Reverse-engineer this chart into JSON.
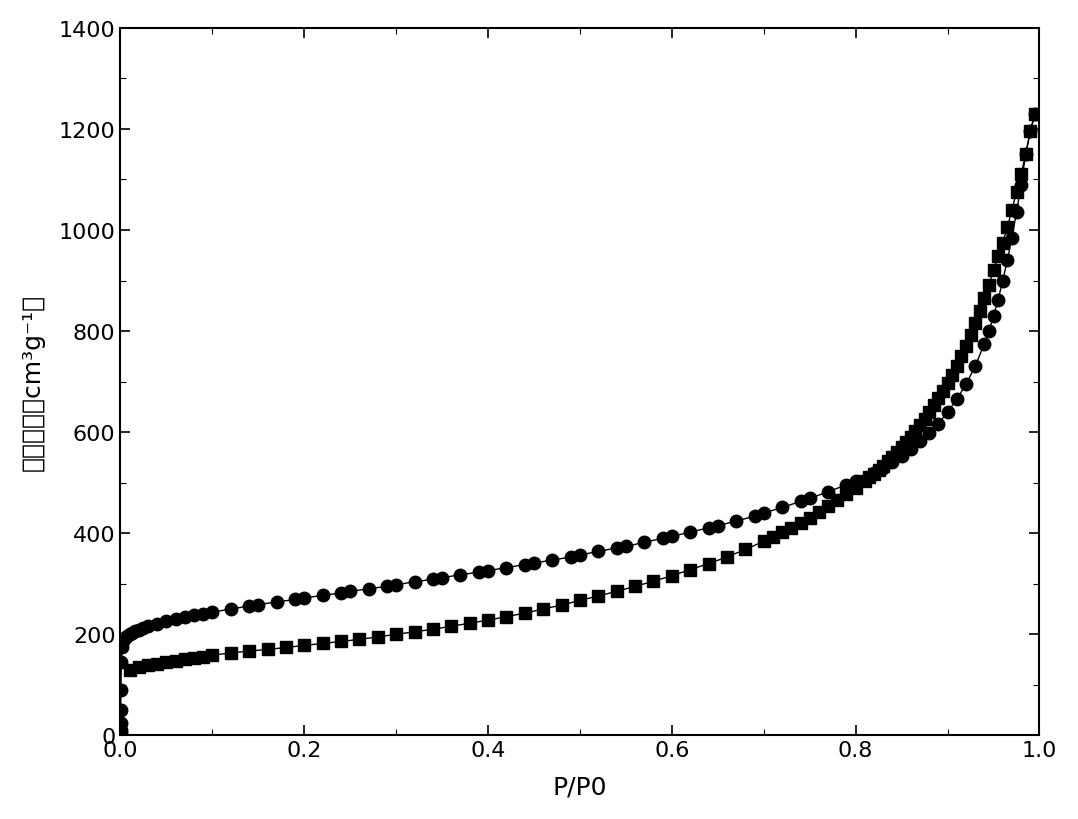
{
  "adsorption_x": [
    5e-05,
    0.0001,
    0.0002,
    0.0003,
    0.0005,
    0.001,
    0.002,
    0.003,
    0.005,
    0.007,
    0.01,
    0.013,
    0.016,
    0.02,
    0.025,
    0.03,
    0.04,
    0.05,
    0.06,
    0.07,
    0.08,
    0.09,
    0.1,
    0.12,
    0.14,
    0.15,
    0.17,
    0.19,
    0.2,
    0.22,
    0.24,
    0.25,
    0.27,
    0.29,
    0.3,
    0.32,
    0.34,
    0.35,
    0.37,
    0.39,
    0.4,
    0.42,
    0.44,
    0.45,
    0.47,
    0.49,
    0.5,
    0.52,
    0.54,
    0.55,
    0.57,
    0.59,
    0.6,
    0.62,
    0.64,
    0.65,
    0.67,
    0.69,
    0.7,
    0.72,
    0.74,
    0.75,
    0.77,
    0.79,
    0.8,
    0.82,
    0.83,
    0.84,
    0.85,
    0.86,
    0.87,
    0.88,
    0.89,
    0.9,
    0.91,
    0.92,
    0.93,
    0.94,
    0.945,
    0.95,
    0.955,
    0.96,
    0.965,
    0.97,
    0.975,
    0.98,
    0.985,
    0.99,
    0.995
  ],
  "adsorption_y": [
    5,
    10,
    25,
    50,
    90,
    145,
    175,
    187,
    193,
    197,
    200,
    203,
    206,
    209,
    213,
    216,
    221,
    226,
    230,
    234,
    238,
    241,
    244,
    250,
    256,
    259,
    264,
    269,
    272,
    277,
    282,
    285,
    290,
    295,
    298,
    304,
    309,
    312,
    318,
    323,
    326,
    332,
    338,
    341,
    347,
    353,
    357,
    364,
    371,
    374,
    382,
    390,
    394,
    402,
    411,
    415,
    424,
    434,
    440,
    451,
    463,
    469,
    482,
    496,
    504,
    520,
    530,
    541,
    553,
    567,
    582,
    598,
    617,
    640,
    665,
    695,
    730,
    775,
    800,
    830,
    862,
    900,
    940,
    985,
    1035,
    1090,
    1150,
    1195,
    1230
  ],
  "desorption_x": [
    0.995,
    0.99,
    0.985,
    0.98,
    0.975,
    0.97,
    0.965,
    0.96,
    0.955,
    0.95,
    0.945,
    0.94,
    0.935,
    0.93,
    0.925,
    0.92,
    0.915,
    0.91,
    0.905,
    0.9,
    0.895,
    0.89,
    0.885,
    0.88,
    0.875,
    0.87,
    0.865,
    0.86,
    0.855,
    0.85,
    0.845,
    0.84,
    0.835,
    0.83,
    0.825,
    0.82,
    0.815,
    0.81,
    0.8,
    0.79,
    0.78,
    0.77,
    0.76,
    0.75,
    0.74,
    0.73,
    0.72,
    0.71,
    0.7,
    0.68,
    0.66,
    0.64,
    0.62,
    0.6,
    0.58,
    0.56,
    0.54,
    0.52,
    0.5,
    0.48,
    0.46,
    0.44,
    0.42,
    0.4,
    0.38,
    0.36,
    0.34,
    0.32,
    0.3,
    0.28,
    0.26,
    0.24,
    0.22,
    0.2,
    0.18,
    0.16,
    0.14,
    0.12,
    0.1,
    0.09,
    0.08,
    0.07,
    0.06,
    0.05,
    0.04,
    0.03,
    0.02,
    0.01
  ],
  "desorption_y": [
    1230,
    1195,
    1150,
    1110,
    1075,
    1040,
    1005,
    975,
    948,
    920,
    892,
    865,
    840,
    816,
    793,
    770,
    750,
    730,
    714,
    698,
    682,
    668,
    654,
    640,
    627,
    615,
    603,
    591,
    580,
    570,
    560,
    551,
    542,
    533,
    525,
    518,
    511,
    504,
    490,
    477,
    465,
    453,
    442,
    431,
    421,
    411,
    402,
    393,
    384,
    368,
    353,
    340,
    328,
    316,
    305,
    295,
    285,
    276,
    267,
    258,
    250,
    242,
    235,
    228,
    222,
    216,
    210,
    205,
    200,
    195,
    190,
    186,
    182,
    178,
    174,
    170,
    167,
    163,
    159,
    156,
    153,
    151,
    148,
    145,
    142,
    139,
    135,
    130
  ],
  "xlabel": "P/P0",
  "ylabel": "吸脱附量（cm³g⁻¹）",
  "xlim": [
    0.0,
    1.0
  ],
  "ylim": [
    0,
    1400
  ],
  "yticks": [
    0,
    200,
    400,
    600,
    800,
    1000,
    1200,
    1400
  ],
  "xticks": [
    0.0,
    0.2,
    0.4,
    0.6,
    0.8,
    1.0
  ],
  "background_color": "#ffffff",
  "line_color": "#000000",
  "marker_adsorption": "o",
  "marker_desorption": "s",
  "markersize_ads": 9,
  "markersize_des": 8,
  "linewidth": 1.0,
  "xlabel_fontsize": 18,
  "ylabel_fontsize": 18,
  "tick_fontsize": 16
}
